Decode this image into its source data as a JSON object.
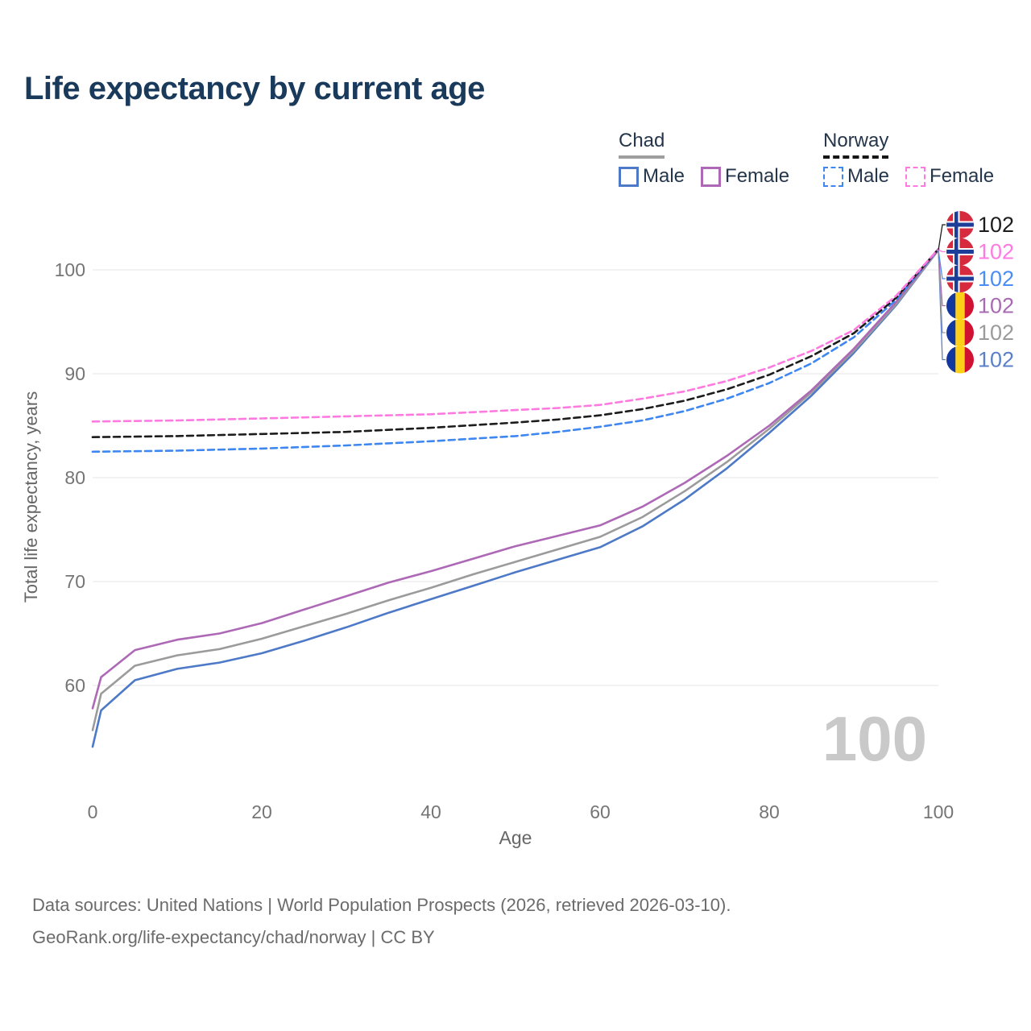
{
  "page": {
    "title": "Life expectancy by current age"
  },
  "legend": {
    "groups": [
      {
        "name": "Chad",
        "line_style": "solid",
        "underline_color": "#9e9e9e",
        "items": [
          {
            "label": "Male",
            "color": "#4d79c7"
          },
          {
            "label": "Female",
            "color": "#ad68b6"
          }
        ]
      },
      {
        "name": "Norway",
        "line_style": "dashed",
        "underline_color": "#161616",
        "items": [
          {
            "label": "Male",
            "color": "#3e86f0"
          },
          {
            "label": "Female",
            "color": "#ff7ae0"
          }
        ]
      }
    ]
  },
  "chart_data": {
    "type": "line",
    "title": "Life expectancy by current age",
    "xlabel": "Age",
    "ylabel": "Total life expectancy, years",
    "xlim": [
      0,
      100
    ],
    "ylim": [
      53,
      103
    ],
    "xticks": [
      0,
      20,
      40,
      60,
      80,
      100
    ],
    "yticks": [
      60,
      70,
      80,
      90,
      100
    ],
    "grid": "horizontal-only",
    "legend_position": "top-right",
    "watermark_age_counter": "100",
    "series": [
      {
        "name": "Chad Male",
        "country": "Chad",
        "sex": "Male",
        "style": "solid",
        "color": "#4d79c7",
        "flag": "chad",
        "end_label": "102",
        "end_label_color": "#5b80c7",
        "label_row": 5,
        "points": [
          [
            0,
            54.1
          ],
          [
            1,
            57.6
          ],
          [
            5,
            60.5
          ],
          [
            10,
            61.6
          ],
          [
            15,
            62.2
          ],
          [
            20,
            63.1
          ],
          [
            25,
            64.3
          ],
          [
            30,
            65.6
          ],
          [
            35,
            67.0
          ],
          [
            40,
            68.3
          ],
          [
            45,
            69.6
          ],
          [
            50,
            70.9
          ],
          [
            55,
            72.1
          ],
          [
            60,
            73.3
          ],
          [
            65,
            75.3
          ],
          [
            70,
            77.9
          ],
          [
            75,
            80.9
          ],
          [
            80,
            84.3
          ],
          [
            85,
            87.9
          ],
          [
            90,
            92.0
          ],
          [
            95,
            96.6
          ],
          [
            100,
            101.9
          ]
        ]
      },
      {
        "name": "Chad Both sexes",
        "country": "Chad",
        "sex": "Both",
        "style": "solid",
        "color": "#9b9b9b",
        "flag": "chad",
        "end_label": "102",
        "end_label_color": "#9b9b9b",
        "label_row": 4,
        "points": [
          [
            0,
            55.7
          ],
          [
            1,
            59.2
          ],
          [
            5,
            61.9
          ],
          [
            10,
            62.9
          ],
          [
            15,
            63.5
          ],
          [
            20,
            64.5
          ],
          [
            25,
            65.7
          ],
          [
            30,
            66.9
          ],
          [
            35,
            68.2
          ],
          [
            40,
            69.4
          ],
          [
            45,
            70.7
          ],
          [
            50,
            71.9
          ],
          [
            55,
            73.1
          ],
          [
            60,
            74.3
          ],
          [
            65,
            76.2
          ],
          [
            70,
            78.7
          ],
          [
            75,
            81.5
          ],
          [
            80,
            84.7
          ],
          [
            85,
            88.2
          ],
          [
            90,
            92.2
          ],
          [
            95,
            96.7
          ],
          [
            100,
            101.9
          ]
        ]
      },
      {
        "name": "Chad Female",
        "country": "Chad",
        "sex": "Female",
        "style": "solid",
        "color": "#ad68b6",
        "flag": "chad",
        "end_label": "102",
        "end_label_color": "#a76ab3",
        "label_row": 3,
        "points": [
          [
            0,
            57.8
          ],
          [
            1,
            60.8
          ],
          [
            5,
            63.4
          ],
          [
            10,
            64.4
          ],
          [
            15,
            65.0
          ],
          [
            20,
            66.0
          ],
          [
            25,
            67.3
          ],
          [
            30,
            68.6
          ],
          [
            35,
            69.9
          ],
          [
            40,
            71.0
          ],
          [
            45,
            72.2
          ],
          [
            50,
            73.4
          ],
          [
            55,
            74.4
          ],
          [
            60,
            75.4
          ],
          [
            65,
            77.2
          ],
          [
            70,
            79.5
          ],
          [
            75,
            82.1
          ],
          [
            80,
            85.0
          ],
          [
            85,
            88.4
          ],
          [
            90,
            92.4
          ],
          [
            95,
            96.9
          ],
          [
            100,
            102.0
          ]
        ]
      },
      {
        "name": "Norway Male",
        "country": "Norway",
        "sex": "Male",
        "style": "dashed",
        "color": "#3e86f0",
        "flag": "norway",
        "end_label": "102",
        "end_label_color": "#4b8df2",
        "label_row": 2,
        "points": [
          [
            0,
            82.5
          ],
          [
            10,
            82.6
          ],
          [
            20,
            82.8
          ],
          [
            30,
            83.1
          ],
          [
            40,
            83.5
          ],
          [
            50,
            84.0
          ],
          [
            55,
            84.4
          ],
          [
            60,
            84.9
          ],
          [
            65,
            85.5
          ],
          [
            70,
            86.4
          ],
          [
            75,
            87.6
          ],
          [
            80,
            89.1
          ],
          [
            85,
            91.0
          ],
          [
            90,
            93.5
          ],
          [
            95,
            97.1
          ],
          [
            100,
            102.0
          ]
        ]
      },
      {
        "name": "Norway Both sexes",
        "country": "Norway",
        "sex": "Both",
        "style": "dashed",
        "color": "#1c1c1c",
        "flag": "norway",
        "end_label": "102",
        "end_label_color": "#1c1c1c",
        "label_row": 0,
        "points": [
          [
            0,
            83.9
          ],
          [
            10,
            84.0
          ],
          [
            20,
            84.2
          ],
          [
            30,
            84.4
          ],
          [
            40,
            84.8
          ],
          [
            50,
            85.3
          ],
          [
            55,
            85.6
          ],
          [
            60,
            86.0
          ],
          [
            65,
            86.6
          ],
          [
            70,
            87.4
          ],
          [
            75,
            88.5
          ],
          [
            80,
            89.9
          ],
          [
            85,
            91.7
          ],
          [
            90,
            93.9
          ],
          [
            95,
            97.3
          ],
          [
            100,
            102.0
          ]
        ]
      },
      {
        "name": "Norway Female",
        "country": "Norway",
        "sex": "Female",
        "style": "dashed",
        "color": "#ff7ae0",
        "flag": "norway",
        "end_label": "102",
        "end_label_color": "#ff7ae0",
        "label_row": 1,
        "points": [
          [
            0,
            85.4
          ],
          [
            10,
            85.5
          ],
          [
            20,
            85.7
          ],
          [
            30,
            85.9
          ],
          [
            40,
            86.1
          ],
          [
            50,
            86.5
          ],
          [
            55,
            86.7
          ],
          [
            60,
            87.0
          ],
          [
            65,
            87.6
          ],
          [
            70,
            88.3
          ],
          [
            75,
            89.3
          ],
          [
            80,
            90.6
          ],
          [
            85,
            92.2
          ],
          [
            90,
            94.2
          ],
          [
            95,
            97.5
          ],
          [
            100,
            102.0
          ]
        ]
      }
    ]
  },
  "flags": {
    "norway": {
      "red": "#d62b3f",
      "white": "#ffffff",
      "navy": "#1c3e99"
    },
    "chad": {
      "blue": "#12389f",
      "yellow": "#fcd018",
      "red": "#d01131"
    }
  },
  "footer": {
    "line1": "Data sources: United Nations | World Population Prospects (2026, retrieved 2026-03-10).",
    "line2": "GeoRank.org/life-expectancy/chad/norway | CC BY"
  }
}
